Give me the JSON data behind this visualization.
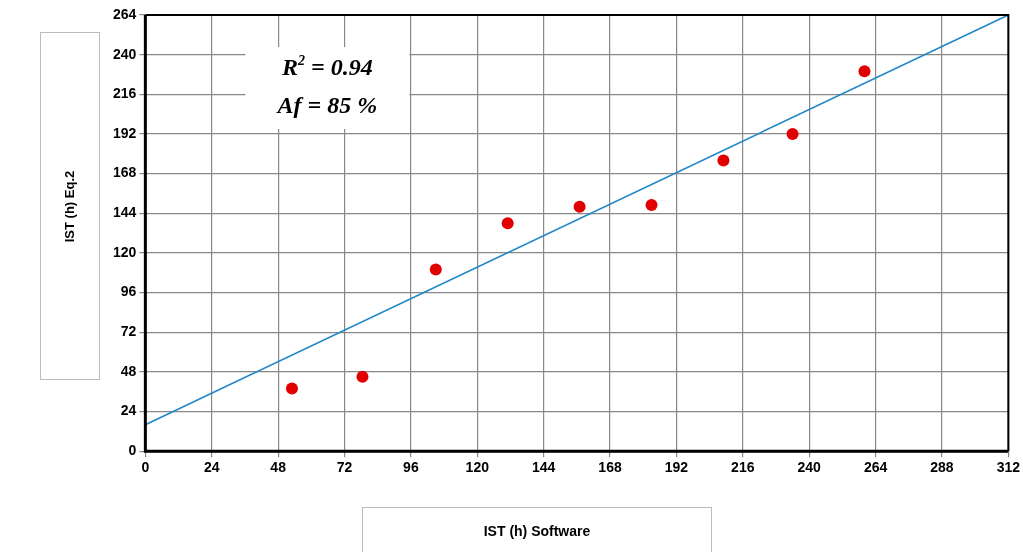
{
  "chart_data": {
    "type": "scatter",
    "xlabel": "IST  (h) Software",
    "ylabel": "IST (h)  Eq.2",
    "annotations": [
      "R$^{2}$ = 0.94",
      "Af = 85 %"
    ],
    "xlim": [
      0,
      312
    ],
    "xticks": [
      0,
      24,
      48,
      72,
      96,
      120,
      144,
      168,
      192,
      216,
      240,
      264,
      288,
      312
    ],
    "ylim": [
      0,
      264
    ],
    "yticks": [
      0,
      24,
      48,
      72,
      96,
      120,
      144,
      168,
      192,
      216,
      240,
      264
    ],
    "grid": true,
    "legend": false,
    "marker": "circle",
    "series": [
      {
        "color": "#e00000",
        "x": [
          53,
          78.5,
          105,
          131,
          157,
          183,
          209,
          234,
          260
        ],
        "values": [
          38,
          45,
          110,
          138,
          148,
          149,
          176,
          192,
          230
        ]
      },
      {
        "type": "line",
        "color": "#1f86c8",
        "x": [
          0,
          312
        ],
        "values": [
          16,
          264
        ],
        "marker": "none",
        "line_style": "solid"
      }
    ]
  }
}
